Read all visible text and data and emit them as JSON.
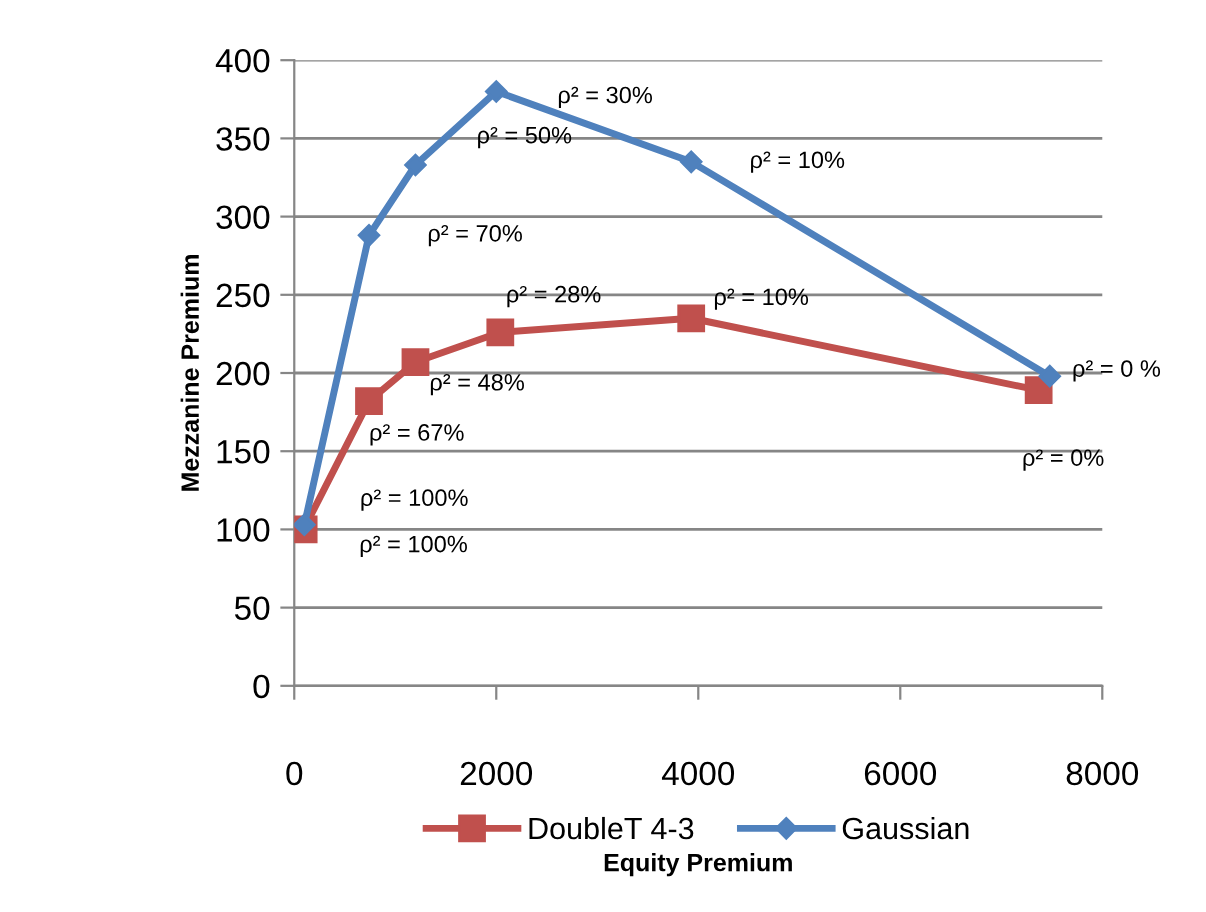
{
  "chart_data": {
    "type": "line",
    "xlabel": "Equity Premium",
    "ylabel": "Mezzanine Premium",
    "series": [
      {
        "name": "DoubleT 4-3",
        "color": "#c0504d",
        "marker": "square",
        "x": [
          93,
          740,
          1200,
          2040,
          3930,
          7370
        ],
        "values": [
          100,
          182,
          207,
          226,
          235,
          189
        ]
      },
      {
        "name": "Gaussian",
        "color": "#4f81bd",
        "marker": "diamond",
        "x": [
          100,
          740,
          1200,
          2000,
          3930,
          7480
        ],
        "values": [
          103,
          288,
          333,
          380,
          335,
          198
        ]
      }
    ],
    "annotations": [
      {
        "text": "ρ² = 100%",
        "x": 100,
        "y": 103
      },
      {
        "text": "ρ² = 70%",
        "x": 740,
        "y": 288
      },
      {
        "text": "ρ² = 50%",
        "x": 1200,
        "y": 333
      },
      {
        "text": "ρ² = 30%",
        "x": 2000,
        "y": 380
      },
      {
        "text": "ρ² = 10%",
        "x": 3930,
        "y": 335
      },
      {
        "text": "ρ² = 0 %",
        "x": 7480,
        "y": 198
      },
      {
        "text": "ρ² = 100%",
        "x": 93,
        "y": 100
      },
      {
        "text": "ρ² = 67%",
        "x": 740,
        "y": 182
      },
      {
        "text": "ρ² = 48%",
        "x": 1200,
        "y": 207
      },
      {
        "text": "ρ² = 28%",
        "x": 2040,
        "y": 226
      },
      {
        "text": "ρ² = 10%",
        "x": 3930,
        "y": 235
      },
      {
        "text": "ρ² = 0%",
        "x": 7370,
        "y": 189
      }
    ],
    "xlim": [
      0,
      8000
    ],
    "xticks": [
      0,
      2000,
      4000,
      6000,
      8000
    ],
    "ylim": [
      0,
      400
    ],
    "yticks": [
      0,
      50,
      100,
      150,
      200,
      250,
      300,
      350,
      400
    ],
    "grid": "y",
    "legend": "bottom",
    "line_style": "solid"
  }
}
